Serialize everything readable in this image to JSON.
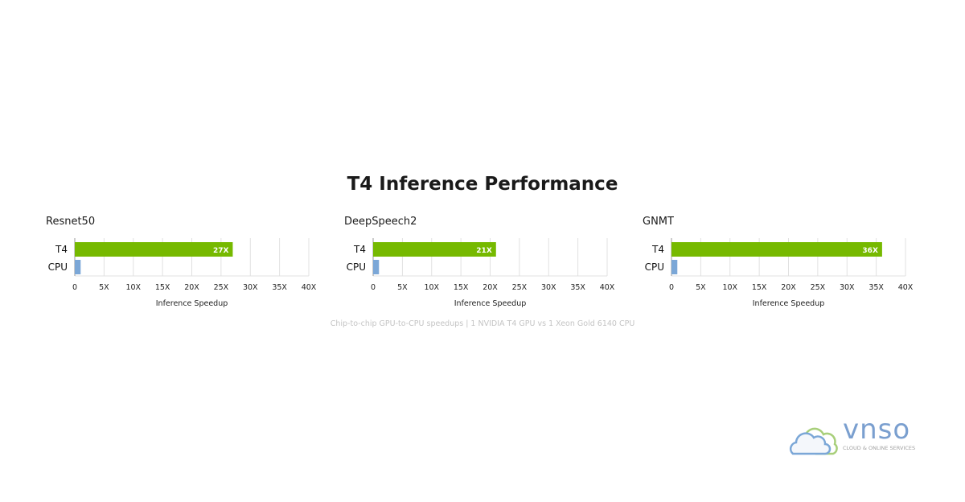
{
  "chart_data": [
    {
      "type": "bar",
      "title": "Resnet50",
      "categories": [
        "T4",
        "CPU"
      ],
      "values": [
        27,
        1
      ],
      "data_labels": [
        "27X",
        ""
      ],
      "xlabel": "Inference Speedup",
      "xlim": [
        0,
        40
      ],
      "xticks": [
        "0",
        "5X",
        "10X",
        "15X",
        "20X",
        "25X",
        "30X",
        "35X",
        "40X"
      ],
      "grid": true
    },
    {
      "type": "bar",
      "title": "DeepSpeech2",
      "categories": [
        "T4",
        "CPU"
      ],
      "values": [
        21,
        1
      ],
      "data_labels": [
        "21X",
        ""
      ],
      "xlabel": "Inference Speedup",
      "xlim": [
        0,
        40
      ],
      "xticks": [
        "0",
        "5X",
        "10X",
        "15X",
        "20X",
        "25X",
        "30X",
        "35X",
        "40X"
      ],
      "grid": true
    },
    {
      "type": "bar",
      "title": "GNMT",
      "categories": [
        "T4",
        "CPU"
      ],
      "values": [
        36,
        1
      ],
      "data_labels": [
        "36X",
        ""
      ],
      "xlabel": "Inference Speedup",
      "xlim": [
        0,
        40
      ],
      "xticks": [
        "0",
        "5X",
        "10X",
        "15X",
        "20X",
        "25X",
        "30X",
        "35X",
        "40X"
      ],
      "grid": true
    }
  ],
  "title": "T4 Inference Performance",
  "footnote": "Chip-to-chip GPU-to-CPU speedups | 1 NVIDIA T4 GPU vs 1 Xeon Gold 6140 CPU",
  "logo": {
    "name": "vnso",
    "tagline": "CLOUD & ONLINE SERVICES"
  },
  "colors": {
    "t4": "#76b900",
    "cpu": "#7ba7d7",
    "grid": "#e0e0e0",
    "axis": "#999999"
  }
}
